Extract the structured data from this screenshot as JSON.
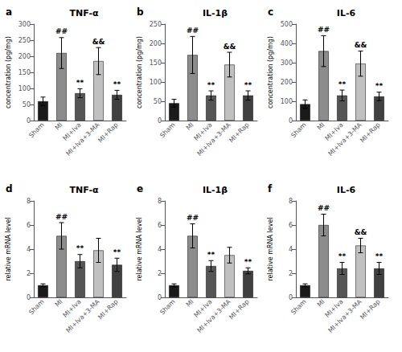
{
  "chart_data": [
    {
      "type": "bar",
      "panel_label": "a",
      "title": "TNF-α",
      "ylabel": "concentration (pg/mg)",
      "categories": [
        "Sham",
        "MI",
        "MI+Iva",
        "MI+Iva+3-MA",
        "MI+Rap"
      ],
      "values": [
        60,
        210,
        85,
        185,
        80
      ],
      "errors": [
        13,
        48,
        14,
        42,
        14
      ],
      "colors": [
        "#1a1a1a",
        "#8c8c8c",
        "#555555",
        "#c0c0c0",
        "#404040"
      ],
      "annotations": [
        {
          "category": "MI",
          "text": "##"
        },
        {
          "category": "MI+Iva",
          "text": "**"
        },
        {
          "category": "MI+Iva+3-MA",
          "text": "&&"
        },
        {
          "category": "MI+Rap",
          "text": "**"
        }
      ],
      "ylim": [
        0,
        300
      ],
      "yticks": [
        0,
        50,
        100,
        150,
        200,
        250,
        300
      ],
      "grid": false
    },
    {
      "type": "bar",
      "panel_label": "b",
      "title": "IL-1β",
      "ylabel": "concentration (pg/mg)",
      "categories": [
        "Sham",
        "MI",
        "MI+Iva",
        "MI+Iva+3-MA",
        "MI+Rap"
      ],
      "values": [
        45,
        170,
        65,
        145,
        65
      ],
      "errors": [
        10,
        48,
        12,
        32,
        12
      ],
      "colors": [
        "#1a1a1a",
        "#8c8c8c",
        "#555555",
        "#c0c0c0",
        "#404040"
      ],
      "annotations": [
        {
          "category": "MI",
          "text": "##"
        },
        {
          "category": "MI+Iva",
          "text": "**"
        },
        {
          "category": "MI+Iva+3-MA",
          "text": "&&"
        },
        {
          "category": "MI+Rap",
          "text": "**"
        }
      ],
      "ylim": [
        0,
        250
      ],
      "yticks": [
        0,
        50,
        100,
        150,
        200,
        250
      ],
      "grid": false
    },
    {
      "type": "bar",
      "panel_label": "c",
      "title": "IL-6",
      "ylabel": "concentration (pg/mg)",
      "categories": [
        "Sham",
        "MI",
        "MI+Iva",
        "MI+Iva+3-MA",
        "MI+Rap"
      ],
      "values": [
        85,
        360,
        130,
        295,
        125
      ],
      "errors": [
        22,
        80,
        28,
        65,
        22
      ],
      "colors": [
        "#1a1a1a",
        "#8c8c8c",
        "#555555",
        "#c0c0c0",
        "#404040"
      ],
      "annotations": [
        {
          "category": "MI",
          "text": "##"
        },
        {
          "category": "MI+Iva",
          "text": "**"
        },
        {
          "category": "MI+Iva+3-MA",
          "text": "&&"
        },
        {
          "category": "MI+Rap",
          "text": "**"
        }
      ],
      "ylim": [
        0,
        500
      ],
      "yticks": [
        0,
        100,
        200,
        300,
        400,
        500
      ],
      "grid": false
    },
    {
      "type": "bar",
      "panel_label": "d",
      "title": "TNF-α",
      "ylabel": "relative mRNA level",
      "categories": [
        "Sham",
        "MI",
        "MI+Iva",
        "MI+Iva+3-MA",
        "MI+Rap"
      ],
      "values": [
        1.0,
        5.1,
        3.0,
        3.9,
        2.7
      ],
      "errors": [
        0.12,
        1.1,
        0.55,
        1.0,
        0.55
      ],
      "colors": [
        "#1a1a1a",
        "#8c8c8c",
        "#555555",
        "#c0c0c0",
        "#404040"
      ],
      "annotations": [
        {
          "category": "MI",
          "text": "##"
        },
        {
          "category": "MI+Iva",
          "text": "**"
        },
        {
          "category": "MI+Rap",
          "text": "**"
        }
      ],
      "ylim": [
        0,
        8
      ],
      "yticks": [
        0,
        2,
        4,
        6,
        8
      ],
      "grid": false
    },
    {
      "type": "bar",
      "panel_label": "e",
      "title": "IL-1β",
      "ylabel": "relative mRNA level",
      "categories": [
        "Sham",
        "MI",
        "MI+Iva",
        "MI+Iva+3-MA",
        "MI+Rap"
      ],
      "values": [
        1.0,
        5.1,
        2.6,
        3.5,
        2.2
      ],
      "errors": [
        0.12,
        1.0,
        0.45,
        0.65,
        0.25
      ],
      "colors": [
        "#1a1a1a",
        "#8c8c8c",
        "#555555",
        "#c0c0c0",
        "#404040"
      ],
      "annotations": [
        {
          "category": "MI",
          "text": "##"
        },
        {
          "category": "MI+Iva",
          "text": "**"
        },
        {
          "category": "MI+Rap",
          "text": "**"
        }
      ],
      "ylim": [
        0,
        8
      ],
      "yticks": [
        0,
        2,
        4,
        6,
        8
      ],
      "grid": false
    },
    {
      "type": "bar",
      "panel_label": "f",
      "title": "IL-6",
      "ylabel": "relative mRNA level",
      "categories": [
        "Sham",
        "MI",
        "MI+Iva",
        "MI+Iva+3-MA",
        "MI+Rap"
      ],
      "values": [
        1.0,
        6.0,
        2.4,
        4.3,
        2.4
      ],
      "errors": [
        0.12,
        0.9,
        0.5,
        0.6,
        0.5
      ],
      "colors": [
        "#1a1a1a",
        "#8c8c8c",
        "#555555",
        "#c0c0c0",
        "#404040"
      ],
      "annotations": [
        {
          "category": "MI",
          "text": "##"
        },
        {
          "category": "MI+Iva",
          "text": "**"
        },
        {
          "category": "MI+Iva+3-MA",
          "text": "&&"
        },
        {
          "category": "MI+Rap",
          "text": "**"
        }
      ],
      "ylim": [
        0,
        8
      ],
      "yticks": [
        0,
        2,
        4,
        6,
        8
      ],
      "grid": false
    }
  ]
}
